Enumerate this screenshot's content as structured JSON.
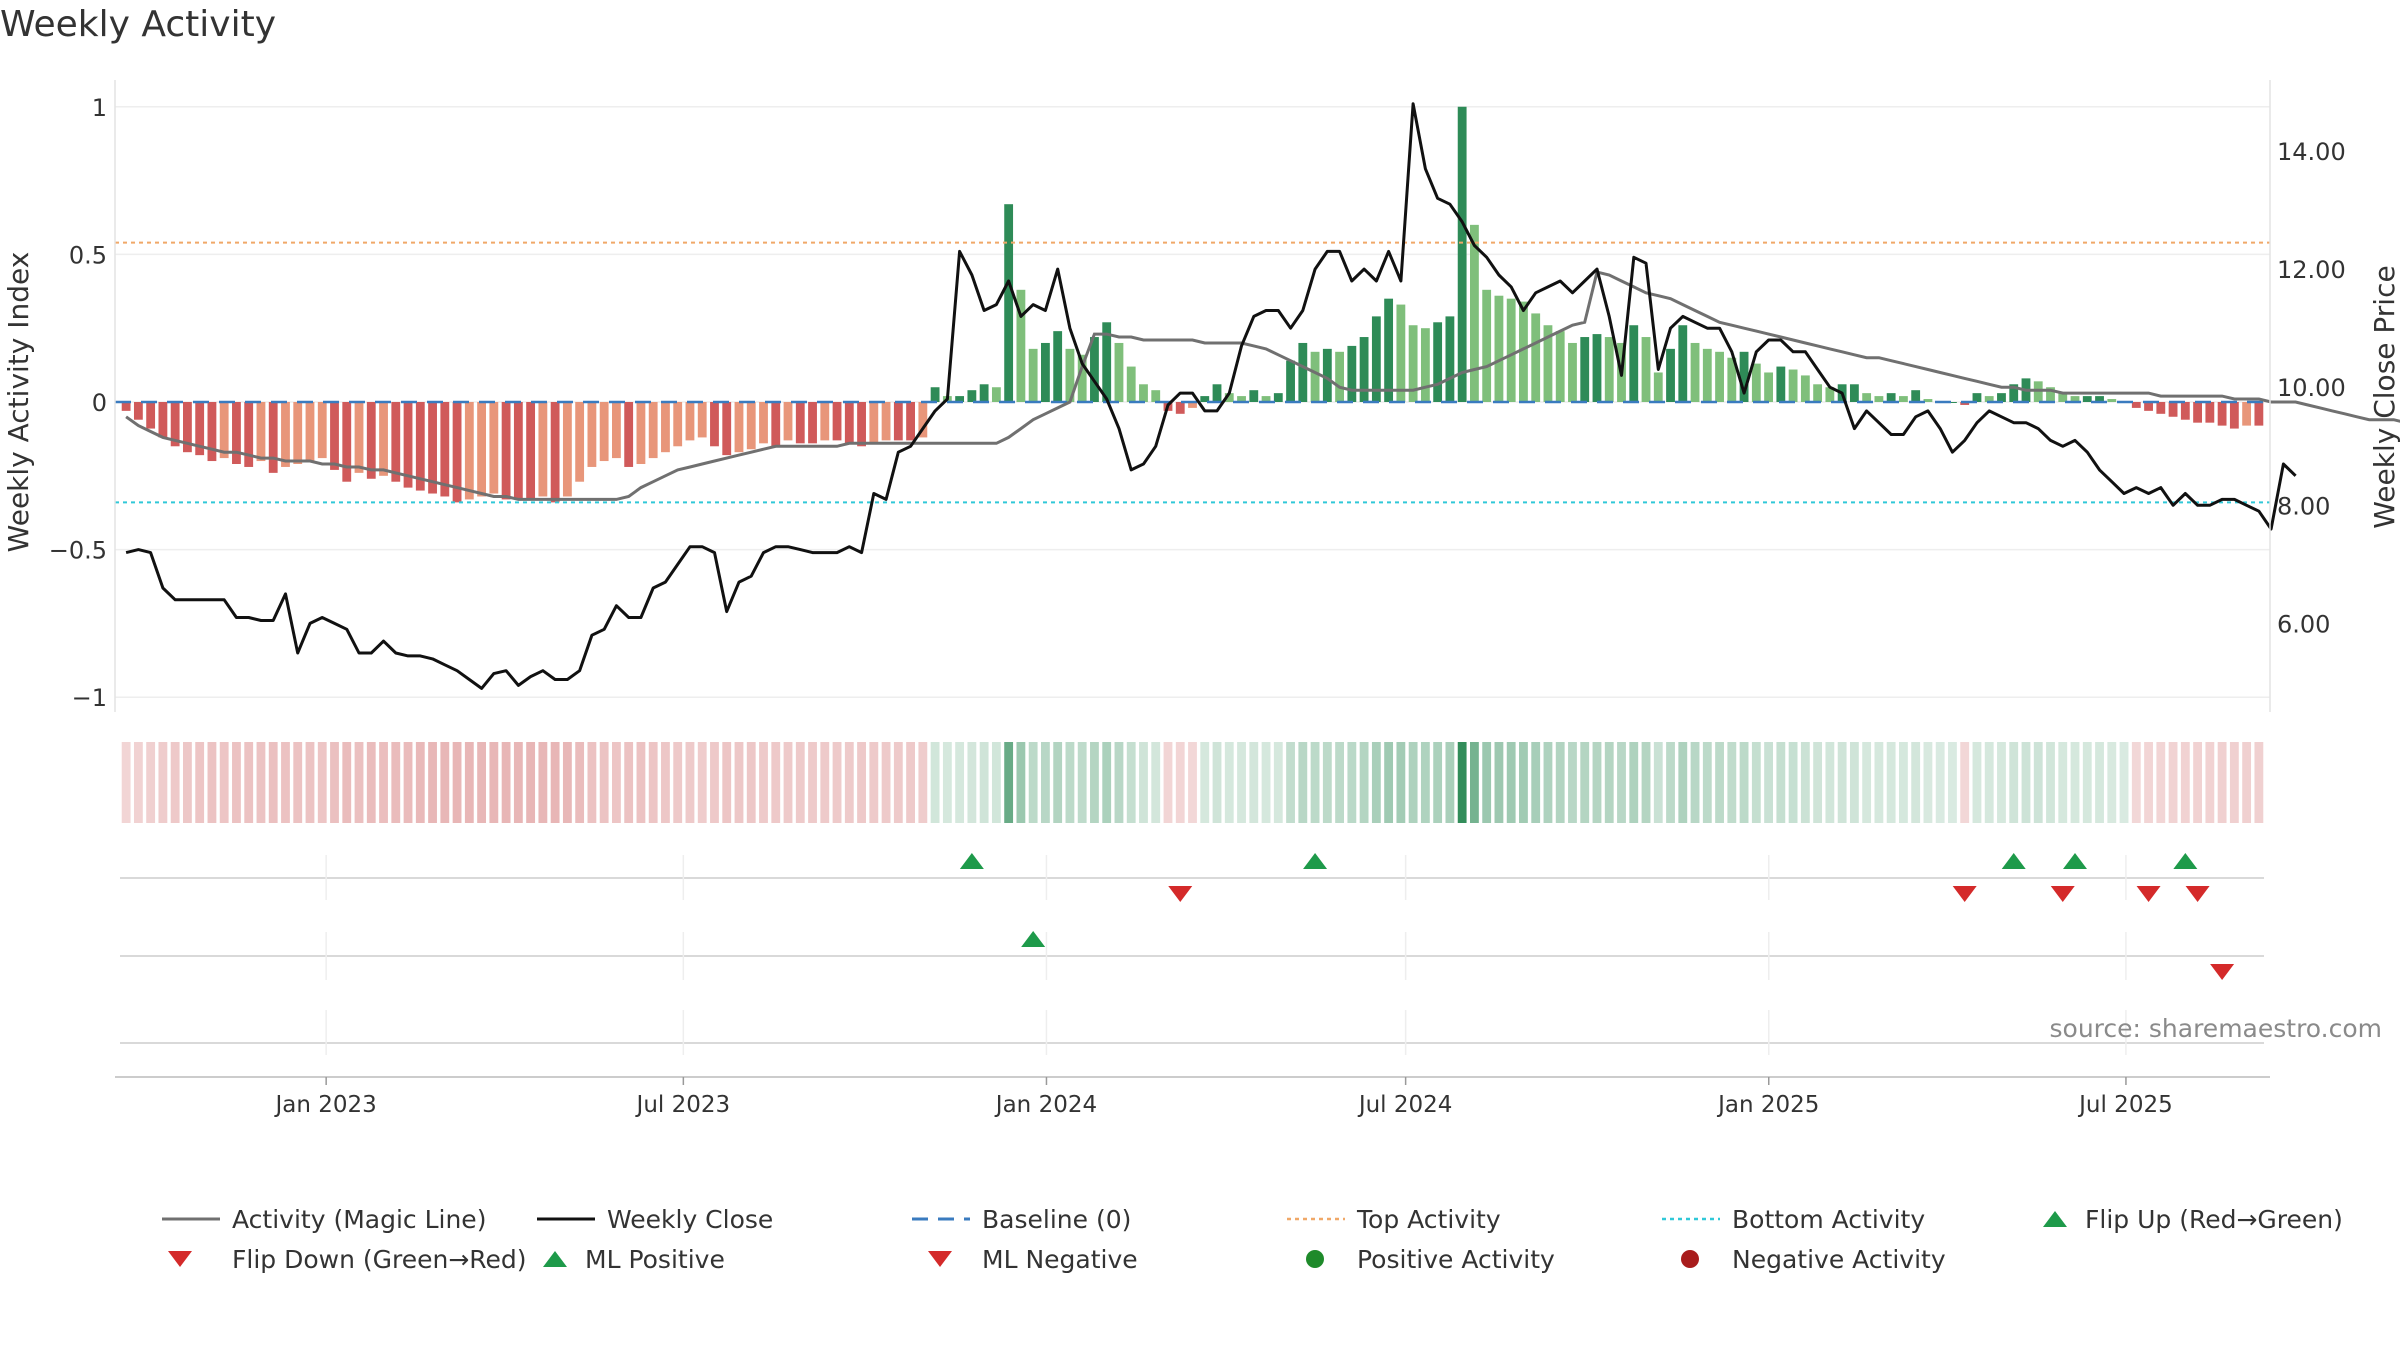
{
  "title": "Weekly Activity",
  "source": "source: sharemaestro.com",
  "colors": {
    "green_dark": "#2e8b57",
    "green_light": "#7fbf7b",
    "red_dark": "#d05a5a",
    "red_light": "#e8967a",
    "magic_line": "#707070",
    "close_line": "#111111",
    "baseline": "#3a7bbf",
    "top_line": "#f0a868",
    "bottom_line": "#30c8d8",
    "marker_up": "#1e9a4a",
    "marker_down": "#d42a2a"
  },
  "chart_data": {
    "type": "bar",
    "x_start": "2022-09-16",
    "x_end": "2025-09-12",
    "x_tick_labels": [
      "Jan 2023",
      "Jul 2023",
      "Jan 2024",
      "Jul 2024",
      "Jan 2025",
      "Jul 2025"
    ],
    "y_left": {
      "label": "Weekly Activity Index",
      "ylim": [
        -1.05,
        1.05
      ],
      "ticks": [
        1,
        0.5,
        0,
        -0.5,
        -1
      ],
      "tick_labels": [
        "1",
        "0.5",
        "0",
        "−0.5",
        "−1"
      ]
    },
    "y_right": {
      "label": "Weekly Close Price",
      "ylim": [
        4.5,
        15
      ],
      "ticks": [
        14,
        12,
        10,
        8,
        6
      ],
      "tick_labels": [
        "14.00",
        "12.00",
        "10.00",
        "8.00",
        "6.00"
      ]
    },
    "top_activity": 0.54,
    "bottom_activity": -0.34,
    "activity": [
      -0.03,
      -0.06,
      -0.09,
      -0.12,
      -0.15,
      -0.17,
      -0.18,
      -0.2,
      -0.19,
      -0.21,
      -0.22,
      -0.2,
      -0.24,
      -0.22,
      -0.21,
      -0.2,
      -0.19,
      -0.23,
      -0.27,
      -0.24,
      -0.26,
      -0.25,
      -0.27,
      -0.29,
      -0.3,
      -0.31,
      -0.32,
      -0.34,
      -0.33,
      -0.32,
      -0.31,
      -0.33,
      -0.33,
      -0.33,
      -0.32,
      -0.34,
      -0.32,
      -0.27,
      -0.22,
      -0.2,
      -0.19,
      -0.22,
      -0.21,
      -0.19,
      -0.17,
      -0.15,
      -0.13,
      -0.12,
      -0.15,
      -0.18,
      -0.17,
      -0.16,
      -0.14,
      -0.15,
      -0.13,
      -0.14,
      -0.14,
      -0.13,
      -0.13,
      -0.14,
      -0.15,
      -0.14,
      -0.13,
      -0.13,
      -0.13,
      -0.12,
      0.05,
      0.02,
      0.02,
      0.04,
      0.06,
      0.05,
      0.67,
      0.38,
      0.18,
      0.2,
      0.24,
      0.18,
      0.16,
      0.22,
      0.27,
      0.2,
      0.12,
      0.06,
      0.04,
      -0.03,
      -0.04,
      -0.02,
      0.02,
      0.06,
      0.03,
      0.02,
      0.04,
      0.02,
      0.03,
      0.14,
      0.2,
      0.17,
      0.18,
      0.17,
      0.19,
      0.22,
      0.29,
      0.35,
      0.33,
      0.26,
      0.25,
      0.27,
      0.29,
      1.0,
      0.6,
      0.38,
      0.36,
      0.35,
      0.34,
      0.3,
      0.26,
      0.24,
      0.2,
      0.22,
      0.23,
      0.22,
      0.2,
      0.26,
      0.22,
      0.1,
      0.18,
      0.26,
      0.2,
      0.18,
      0.17,
      0.15,
      0.17,
      0.13,
      0.1,
      0.12,
      0.11,
      0.09,
      0.06,
      0.05,
      0.06,
      0.06,
      0.03,
      0.02,
      0.03,
      0.02,
      0.04,
      0.01,
      0.0,
      0.0,
      -0.01,
      0.03,
      0.02,
      0.03,
      0.06,
      0.08,
      0.07,
      0.05,
      0.03,
      0.02,
      0.02,
      0.02,
      0.01,
      0.0,
      -0.02,
      -0.03,
      -0.04,
      -0.05,
      -0.06,
      -0.07,
      -0.07,
      -0.08,
      -0.09,
      -0.08,
      -0.08
    ],
    "magic_line": [
      -0.05,
      -0.08,
      -0.1,
      -0.12,
      -0.13,
      -0.14,
      -0.15,
      -0.16,
      -0.17,
      -0.17,
      -0.18,
      -0.19,
      -0.19,
      -0.2,
      -0.2,
      -0.2,
      -0.21,
      -0.21,
      -0.22,
      -0.22,
      -0.23,
      -0.23,
      -0.24,
      -0.25,
      -0.26,
      -0.27,
      -0.28,
      -0.29,
      -0.3,
      -0.31,
      -0.32,
      -0.32,
      -0.33,
      -0.33,
      -0.33,
      -0.33,
      -0.33,
      -0.33,
      -0.33,
      -0.33,
      -0.33,
      -0.32,
      -0.29,
      -0.27,
      -0.25,
      -0.23,
      -0.22,
      -0.21,
      -0.2,
      -0.19,
      -0.18,
      -0.17,
      -0.16,
      -0.15,
      -0.15,
      -0.15,
      -0.15,
      -0.15,
      -0.15,
      -0.14,
      -0.14,
      -0.14,
      -0.14,
      -0.14,
      -0.14,
      -0.14,
      -0.14,
      -0.14,
      -0.14,
      -0.14,
      -0.14,
      -0.14,
      -0.12,
      -0.09,
      -0.06,
      -0.04,
      -0.02,
      0.0,
      0.12,
      0.23,
      0.23,
      0.22,
      0.22,
      0.21,
      0.21,
      0.21,
      0.21,
      0.21,
      0.2,
      0.2,
      0.2,
      0.2,
      0.19,
      0.18,
      0.16,
      0.14,
      0.12,
      0.1,
      0.08,
      0.05,
      0.04,
      0.04,
      0.04,
      0.04,
      0.04,
      0.04,
      0.05,
      0.06,
      0.08,
      0.1,
      0.11,
      0.12,
      0.14,
      0.16,
      0.18,
      0.2,
      0.22,
      0.24,
      0.26,
      0.27,
      0.44,
      0.43,
      0.41,
      0.39,
      0.37,
      0.36,
      0.35,
      0.33,
      0.31,
      0.29,
      0.27,
      0.26,
      0.25,
      0.24,
      0.23,
      0.22,
      0.21,
      0.2,
      0.19,
      0.18,
      0.17,
      0.16,
      0.15,
      0.15,
      0.14,
      0.13,
      0.12,
      0.11,
      0.1,
      0.09,
      0.08,
      0.07,
      0.06,
      0.05,
      0.05,
      0.04,
      0.04,
      0.04,
      0.03,
      0.03,
      0.03,
      0.03,
      0.03,
      0.03,
      0.03,
      0.03,
      0.02,
      0.02,
      0.02,
      0.02,
      0.02,
      0.02,
      0.01,
      0.01,
      0.01,
      0.0,
      0.0,
      0.0,
      -0.01,
      -0.02,
      -0.03,
      -0.04,
      -0.05,
      -0.06,
      -0.06,
      -0.06,
      -0.07,
      -0.07,
      -0.07
    ],
    "close": [
      7.2,
      7.25,
      7.2,
      6.6,
      6.4,
      6.4,
      6.4,
      6.4,
      6.4,
      6.1,
      6.1,
      6.05,
      6.05,
      6.5,
      5.5,
      6.0,
      6.1,
      6.0,
      5.9,
      5.5,
      5.5,
      5.7,
      5.5,
      5.45,
      5.45,
      5.4,
      5.3,
      5.2,
      5.05,
      4.9,
      5.15,
      5.2,
      4.95,
      5.1,
      5.2,
      5.05,
      5.05,
      5.2,
      5.8,
      5.9,
      6.3,
      6.1,
      6.1,
      6.6,
      6.7,
      7.0,
      7.3,
      7.3,
      7.2,
      6.2,
      6.7,
      6.8,
      7.2,
      7.3,
      7.3,
      7.25,
      7.2,
      7.2,
      7.2,
      7.3,
      7.2,
      8.2,
      8.1,
      8.9,
      9.0,
      9.3,
      9.6,
      9.8,
      12.3,
      11.9,
      11.3,
      11.4,
      11.8,
      11.2,
      11.4,
      11.3,
      12.0,
      11.0,
      10.4,
      10.1,
      9.8,
      9.3,
      8.6,
      8.7,
      9.0,
      9.7,
      9.9,
      9.9,
      9.6,
      9.6,
      9.9,
      10.7,
      11.2,
      11.3,
      11.3,
      11.0,
      11.3,
      12.0,
      12.3,
      12.3,
      11.8,
      12.0,
      11.8,
      12.3,
      11.8,
      14.8,
      13.7,
      13.2,
      13.1,
      12.8,
      12.4,
      12.2,
      11.9,
      11.7,
      11.3,
      11.6,
      11.7,
      11.8,
      11.6,
      11.8,
      12.0,
      11.2,
      10.2,
      12.2,
      12.1,
      10.3,
      11.0,
      11.2,
      11.1,
      11.0,
      11.0,
      10.6,
      9.9,
      10.6,
      10.8,
      10.8,
      10.6,
      10.6,
      10.3,
      10.0,
      9.9,
      9.3,
      9.6,
      9.4,
      9.2,
      9.2,
      9.5,
      9.6,
      9.3,
      8.9,
      9.1,
      9.4,
      9.6,
      9.5,
      9.4,
      9.4,
      9.3,
      9.1,
      9.0,
      9.1,
      8.9,
      8.6,
      8.4,
      8.2,
      8.3,
      8.2,
      8.3,
      8.0,
      8.2,
      8.0,
      8.0,
      8.1,
      8.1,
      8.0,
      7.9,
      7.6,
      8.7,
      8.5
    ]
  },
  "markers": {
    "flip_up": [
      69,
      97,
      154,
      159,
      168
    ],
    "flip_down": [
      86,
      150,
      158,
      165,
      169
    ],
    "ml_positive": [
      74
    ],
    "ml_negative": [
      171
    ],
    "positive_activity": [],
    "negative_activity": []
  },
  "legend": [
    {
      "key": "magic",
      "label": "Activity (Magic Line)"
    },
    {
      "key": "close",
      "label": "Weekly Close"
    },
    {
      "key": "baseline",
      "label": "Baseline (0)"
    },
    {
      "key": "top",
      "label": "Top Activity"
    },
    {
      "key": "bottom",
      "label": "Bottom Activity"
    },
    {
      "key": "flipup",
      "label": "Flip Up (Red→Green)"
    },
    {
      "key": "flipdown",
      "label": "Flip Down (Green→Red)"
    },
    {
      "key": "mlpos",
      "label": "ML Positive"
    },
    {
      "key": "mlneg",
      "label": "ML Negative"
    },
    {
      "key": "posact",
      "label": "Positive Activity"
    },
    {
      "key": "negact",
      "label": "Negative Activity"
    }
  ]
}
